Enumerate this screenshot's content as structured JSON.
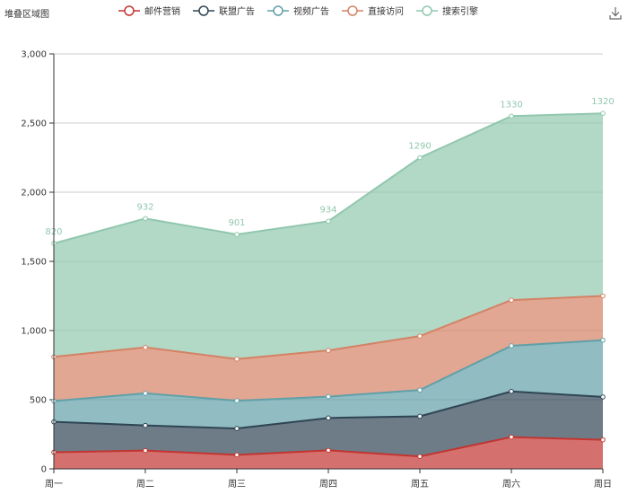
{
  "chart_data": {
    "type": "area",
    "stacked": true,
    "title": "堆叠区域图",
    "categories": [
      "周一",
      "周二",
      "周三",
      "周四",
      "周五",
      "周六",
      "周日"
    ],
    "ylim": [
      0,
      3000
    ],
    "yticks": [
      0,
      500,
      1000,
      1500,
      2000,
      2500,
      3000
    ],
    "ytick_labels": [
      "0",
      "500",
      "1,000",
      "1,500",
      "2,000",
      "2,500",
      "3,000"
    ],
    "grid": true,
    "legend_position": "top",
    "series": [
      {
        "name": "邮件营销",
        "color": "#c23531",
        "values": [
          120,
          132,
          101,
          134,
          90,
          230,
          210
        ]
      },
      {
        "name": "联盟广告",
        "color": "#2f4554",
        "values": [
          220,
          182,
          191,
          234,
          290,
          330,
          310
        ]
      },
      {
        "name": "视频广告",
        "color": "#61a0a8",
        "values": [
          150,
          232,
          201,
          154,
          190,
          330,
          410
        ]
      },
      {
        "name": "直接访问",
        "color": "#d48265",
        "values": [
          320,
          332,
          301,
          334,
          390,
          330,
          320
        ]
      },
      {
        "name": "搜索引擎",
        "color": "#91c7ae",
        "values": [
          820,
          932,
          901,
          934,
          1290,
          1330,
          1320
        ],
        "show_labels": true
      }
    ]
  },
  "toolbox": {
    "download_icon": "download-icon"
  }
}
